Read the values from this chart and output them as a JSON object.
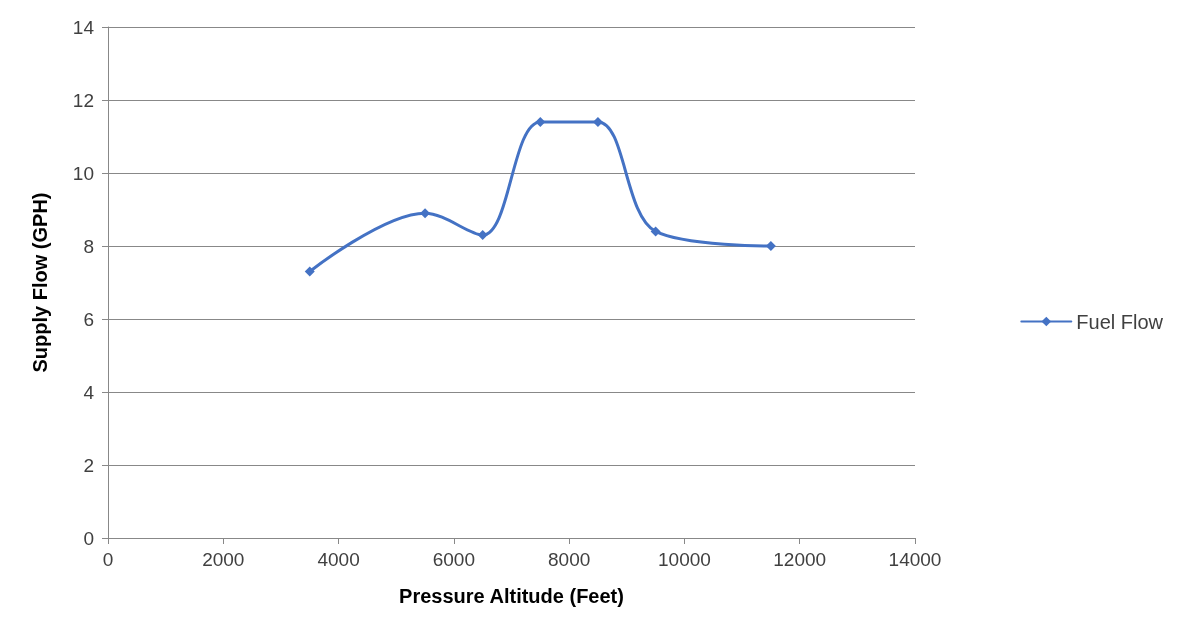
{
  "chart_data": {
    "type": "line",
    "xlabel": "Pressure Altitude (Feet)",
    "ylabel": "Supply Flow (GPH)",
    "x": [
      3500,
      5500,
      6500,
      7500,
      8500,
      9500,
      11500
    ],
    "series": [
      {
        "name": "Fuel Flow",
        "color": "#4472c4",
        "values": [
          7.3,
          8.9,
          8.3,
          11.4,
          11.4,
          8.4,
          8.0
        ]
      }
    ],
    "xlim": [
      0,
      14000
    ],
    "xticks": [
      0,
      2000,
      4000,
      6000,
      8000,
      10000,
      12000,
      14000
    ],
    "ylim": [
      0,
      14
    ],
    "yticks": [
      0,
      2,
      4,
      6,
      8,
      10,
      12,
      14
    ],
    "grid": "y",
    "legend": "right",
    "marker": "diamond",
    "line_style": "solid"
  }
}
